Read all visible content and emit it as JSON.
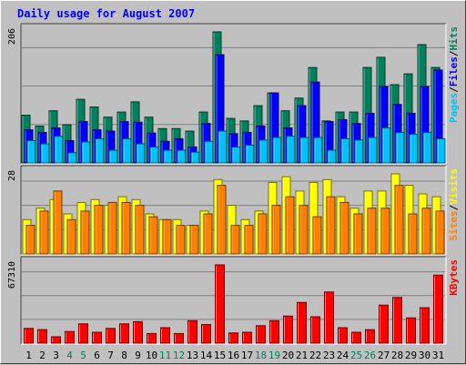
{
  "chart_data": [
    {
      "type": "bar",
      "title": "Daily usage for August 2007",
      "max_label": "206",
      "categories": [
        "1",
        "2",
        "3",
        "4",
        "5",
        "6",
        "7",
        "8",
        "9",
        "10",
        "11",
        "12",
        "13",
        "14",
        "15",
        "16",
        "17",
        "18",
        "19",
        "20",
        "21",
        "22",
        "23",
        "24",
        "25",
        "26",
        "27",
        "28",
        "29",
        "30",
        "31"
      ],
      "weekend_days": [
        4,
        5,
        11,
        12,
        18,
        19,
        25,
        26
      ],
      "legend": [
        "Pages",
        "Files",
        "Hits"
      ],
      "series": [
        {
          "name": "Hits",
          "color": "#00805c",
          "values": [
            75,
            58,
            82,
            60,
            100,
            88,
            72,
            80,
            96,
            72,
            54,
            54,
            50,
            80,
            206,
            70,
            66,
            90,
            110,
            82,
            102,
            150,
            66,
            80,
            80,
            150,
            166,
            123,
            140,
            186,
            150
          ]
        },
        {
          "name": "Files",
          "color": "#0000ff",
          "values": [
            52,
            48,
            55,
            35,
            65,
            52,
            50,
            65,
            64,
            47,
            34,
            38,
            25,
            62,
            170,
            46,
            48,
            58,
            110,
            55,
            90,
            127,
            65,
            68,
            62,
            78,
            120,
            92,
            78,
            120,
            146
          ]
        },
        {
          "name": "Pages",
          "color": "#00c0ff",
          "values": [
            35,
            30,
            42,
            16,
            33,
            38,
            20,
            38,
            30,
            25,
            20,
            20,
            17,
            34,
            50,
            25,
            28,
            36,
            40,
            42,
            40,
            40,
            20,
            38,
            36,
            40,
            55,
            48,
            45,
            48,
            38
          ]
        }
      ],
      "ylim": [
        0,
        206
      ]
    },
    {
      "type": "bar",
      "max_label": "28",
      "legend": [
        "Sites",
        "Visits"
      ],
      "series": [
        {
          "name": "Visits",
          "color": "#ffff00",
          "values": [
            12,
            16,
            19,
            14,
            18,
            19,
            17,
            20,
            19,
            14,
            12,
            12,
            10,
            15,
            26,
            17,
            12,
            15,
            25,
            27,
            22,
            25,
            26,
            20,
            16,
            22,
            22,
            28,
            24,
            21,
            20
          ]
        },
        {
          "name": "Sites",
          "color": "#ff8000",
          "values": [
            10,
            15,
            22,
            12,
            15,
            17,
            18,
            18,
            17,
            13,
            12,
            10,
            10,
            14,
            24,
            10,
            10,
            14,
            17,
            20,
            17,
            13,
            20,
            18,
            14,
            16,
            16,
            24,
            14,
            16,
            15
          ]
        }
      ],
      "ylim": [
        0,
        28
      ]
    },
    {
      "type": "bar",
      "max_label": "67310",
      "legend": [
        "KBytes"
      ],
      "series": [
        {
          "name": "KBytes",
          "color": "#ff0000",
          "values": [
            12700,
            11600,
            5520,
            10000,
            16600,
            9380,
            12700,
            16600,
            18500,
            8300,
            13300,
            8300,
            19300,
            16000,
            67310,
            8800,
            9380,
            15000,
            19300,
            23300,
            35000,
            22700,
            44000,
            13300,
            9380,
            11600,
            32700,
            39300,
            21700,
            30500,
            58500
          ]
        }
      ],
      "ylim": [
        0,
        67310
      ]
    }
  ],
  "colors": {
    "background": "#c0c0c0",
    "plot_background": "#c0c0c0",
    "title": "#0000ff",
    "weekday_label": "#000000",
    "weekend_label": "#00805c",
    "grid": "#808080"
  },
  "legend_separator": "/"
}
